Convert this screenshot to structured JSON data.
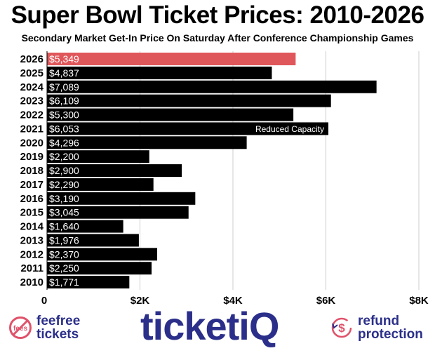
{
  "chart_data": {
    "type": "bar",
    "orientation": "horizontal",
    "title": "Super Bowl Ticket Prices: 2010-2026",
    "subtitle": "Secondary Market Get-In Price On Saturday After Conference Championship Games",
    "categories": [
      "2026",
      "2025",
      "2024",
      "2023",
      "2022",
      "2021",
      "2020",
      "2019",
      "2018",
      "2017",
      "2016",
      "2015",
      "2014",
      "2013",
      "2012",
      "2011",
      "2010"
    ],
    "values": [
      5349,
      4837,
      7089,
      6109,
      5300,
      6053,
      4296,
      2200,
      2900,
      2290,
      3190,
      3045,
      1640,
      1976,
      2370,
      2250,
      1771
    ],
    "labels": [
      "$5,349",
      "$4,837",
      "$7,089",
      "$6,109",
      "$5,300",
      "$6,053",
      "$4,296",
      "$2,200",
      "$2,900",
      "$2,290",
      "$3,190",
      "$3,045",
      "$1,640",
      "$1,976",
      "$2,370",
      "$2,250",
      "$1,771"
    ],
    "highlight_category": "2026",
    "annotations": [
      {
        "category": "2021",
        "text": "Reduced Capacity"
      }
    ],
    "xlim": [
      0,
      8000
    ],
    "xticks": [
      0,
      2000,
      4000,
      6000,
      8000
    ],
    "xtick_labels": [
      "0",
      "$2K",
      "$4K",
      "$6K",
      "$8K"
    ],
    "grid": true,
    "colors": {
      "bar": "#000000",
      "highlight": "#e0575b",
      "bar_text": "#ffffff",
      "grid": "#cccccc"
    }
  },
  "footer": {
    "left_line1": "feefree",
    "left_line2": "tickets",
    "left_icon_text": "fees",
    "brand": "ticketiQ",
    "right_line1": "refund",
    "right_line2": "protection",
    "right_icon_text": "$",
    "brand_color": "#2b2f8a",
    "accent_color": "#e0526a"
  }
}
